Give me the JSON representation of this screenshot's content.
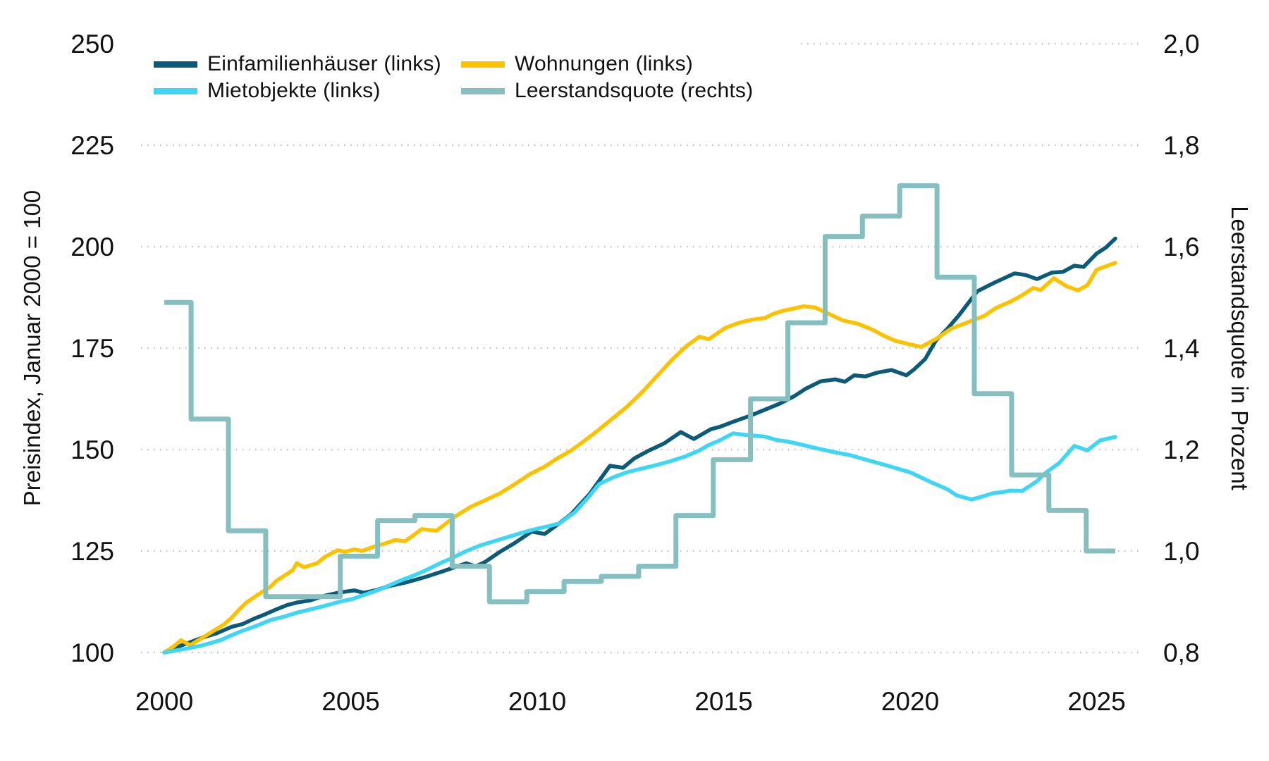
{
  "chart_data": {
    "type": "line",
    "title": "",
    "background": "#ffffff",
    "grid": {
      "show": true,
      "color": "#bdbdbd",
      "style": "dotted"
    },
    "x_axis": {
      "range": [
        2000,
        2025.6
      ],
      "tick_labels": [
        "2000",
        "2005",
        "2010",
        "2015",
        "2020",
        "2025"
      ],
      "tick_values": [
        2000,
        2005,
        2010,
        2015,
        2020,
        2025
      ]
    },
    "left_axis": {
      "label": "Preisindex, Januar 2000 = 100",
      "range": [
        100,
        250
      ],
      "tick_labels": [
        "250",
        "225",
        "200",
        "175",
        "150",
        "125",
        "100"
      ],
      "tick_values": [
        250,
        225,
        200,
        175,
        150,
        125,
        100
      ]
    },
    "right_axis": {
      "label": "Leerstandsquote in Prozent",
      "range": [
        0.8,
        2.0
      ],
      "tick_labels": [
        "2,0",
        "1,8",
        "1,6",
        "1,4",
        "1,2",
        "1,0",
        "0,8"
      ],
      "tick_values": [
        2.0,
        1.8,
        1.6,
        1.4,
        1.2,
        1.0,
        0.8
      ]
    },
    "legend": {
      "position": "top-left",
      "columns": 2
    },
    "series": [
      {
        "name": "Einfamilienhäuser (links)",
        "color": "#0b5b78",
        "axis": "left",
        "line_type": "line",
        "points": [
          [
            2000,
            100
          ],
          [
            2000.3,
            101.2
          ],
          [
            2000.6,
            102.2
          ],
          [
            2001,
            103.6
          ],
          [
            2001.4,
            104.7
          ],
          [
            2001.8,
            106.3
          ],
          [
            2002.1,
            107
          ],
          [
            2002.4,
            108.3
          ],
          [
            2002.7,
            109.4
          ],
          [
            2003,
            110.6
          ],
          [
            2003.3,
            111.7
          ],
          [
            2003.6,
            112.4
          ],
          [
            2003.9,
            112.8
          ],
          [
            2004.3,
            114
          ],
          [
            2004.7,
            114.8
          ],
          [
            2005.1,
            115.3
          ],
          [
            2005.35,
            114.7
          ],
          [
            2005.7,
            115.4
          ],
          [
            2006,
            116.3
          ],
          [
            2006.5,
            117.3
          ],
          [
            2007,
            118.6
          ],
          [
            2007.5,
            120.1
          ],
          [
            2008.1,
            122
          ],
          [
            2008.35,
            121.2
          ],
          [
            2008.6,
            122.3
          ],
          [
            2009,
            124.8
          ],
          [
            2009.4,
            127
          ],
          [
            2009.85,
            129.8
          ],
          [
            2010.2,
            129.2
          ],
          [
            2010.5,
            131.2
          ],
          [
            2010.9,
            134
          ],
          [
            2011.4,
            139
          ],
          [
            2011.95,
            146
          ],
          [
            2012.3,
            145.5
          ],
          [
            2012.6,
            147.8
          ],
          [
            2013,
            149.8
          ],
          [
            2013.4,
            151.5
          ],
          [
            2013.85,
            154.3
          ],
          [
            2014.2,
            152.6
          ],
          [
            2014.65,
            155
          ],
          [
            2014.9,
            155.6
          ],
          [
            2015.3,
            157
          ],
          [
            2015.7,
            158.3
          ],
          [
            2016.1,
            159.8
          ],
          [
            2016.5,
            161.3
          ],
          [
            2016.9,
            163.2
          ],
          [
            2017.2,
            165
          ],
          [
            2017.6,
            166.8
          ],
          [
            2018,
            167.3
          ],
          [
            2018.25,
            166.7
          ],
          [
            2018.5,
            168.3
          ],
          [
            2018.8,
            168
          ],
          [
            2019.1,
            168.9
          ],
          [
            2019.5,
            169.6
          ],
          [
            2019.9,
            168.3
          ],
          [
            2020.1,
            169.7
          ],
          [
            2020.4,
            172.3
          ],
          [
            2020.7,
            177
          ],
          [
            2021,
            179.8
          ],
          [
            2021.3,
            183
          ],
          [
            2021.8,
            189
          ],
          [
            2022.3,
            191.3
          ],
          [
            2022.8,
            193.4
          ],
          [
            2023.1,
            193
          ],
          [
            2023.4,
            192
          ],
          [
            2023.8,
            193.6
          ],
          [
            2024.1,
            193.8
          ],
          [
            2024.4,
            195.3
          ],
          [
            2024.65,
            195
          ],
          [
            2025,
            198.3
          ],
          [
            2025.25,
            199.8
          ],
          [
            2025.5,
            202
          ]
        ]
      },
      {
        "name": "Wohnungen (links)",
        "color": "#fcc200",
        "axis": "left",
        "line_type": "line",
        "points": [
          [
            2000,
            100
          ],
          [
            2000.25,
            101.5
          ],
          [
            2000.45,
            103
          ],
          [
            2000.7,
            101.8
          ],
          [
            2001,
            103.5
          ],
          [
            2001.3,
            105.2
          ],
          [
            2001.6,
            106.9
          ],
          [
            2001.8,
            108.5
          ],
          [
            2002,
            110.5
          ],
          [
            2002.2,
            112.3
          ],
          [
            2002.5,
            114.2
          ],
          [
            2002.85,
            116.2
          ],
          [
            2003,
            117.6
          ],
          [
            2003.2,
            118.8
          ],
          [
            2003.45,
            120.3
          ],
          [
            2003.55,
            122
          ],
          [
            2003.75,
            121
          ],
          [
            2004.1,
            122
          ],
          [
            2004.3,
            123.5
          ],
          [
            2004.65,
            125.2
          ],
          [
            2004.85,
            124.8
          ],
          [
            2005.1,
            125.4
          ],
          [
            2005.3,
            125
          ],
          [
            2005.6,
            126
          ],
          [
            2005.9,
            126.8
          ],
          [
            2006.2,
            127.7
          ],
          [
            2006.45,
            127.4
          ],
          [
            2006.7,
            129
          ],
          [
            2006.9,
            130.4
          ],
          [
            2007.3,
            130
          ],
          [
            2007.8,
            133.5
          ],
          [
            2008.2,
            135.8
          ],
          [
            2008.6,
            137.5
          ],
          [
            2009,
            139.2
          ],
          [
            2009.4,
            141.5
          ],
          [
            2009.8,
            143.9
          ],
          [
            2010.2,
            145.8
          ],
          [
            2010.5,
            147.6
          ],
          [
            2010.9,
            149.7
          ],
          [
            2011.2,
            151.7
          ],
          [
            2011.6,
            154.5
          ],
          [
            2012,
            157.5
          ],
          [
            2012.4,
            160.5
          ],
          [
            2012.8,
            164
          ],
          [
            2013.2,
            168
          ],
          [
            2013.6,
            172
          ],
          [
            2014,
            175.5
          ],
          [
            2014.35,
            177.8
          ],
          [
            2014.6,
            177.2
          ],
          [
            2015.05,
            180
          ],
          [
            2015.4,
            181.2
          ],
          [
            2015.75,
            182
          ],
          [
            2016.1,
            182.4
          ],
          [
            2016.35,
            183.5
          ],
          [
            2016.6,
            184.2
          ],
          [
            2016.9,
            184.8
          ],
          [
            2017.15,
            185.3
          ],
          [
            2017.45,
            185
          ],
          [
            2017.8,
            183.5
          ],
          [
            2018.2,
            181.8
          ],
          [
            2018.6,
            181
          ],
          [
            2019,
            179.5
          ],
          [
            2019.3,
            178
          ],
          [
            2019.6,
            176.8
          ],
          [
            2020,
            175.9
          ],
          [
            2020.3,
            175.3
          ],
          [
            2020.7,
            177.3
          ],
          [
            2021.1,
            179.8
          ],
          [
            2021.5,
            181.2
          ],
          [
            2022,
            183
          ],
          [
            2022.3,
            184.9
          ],
          [
            2022.7,
            186.5
          ],
          [
            2023,
            188
          ],
          [
            2023.3,
            189.8
          ],
          [
            2023.5,
            189.3
          ],
          [
            2023.85,
            192.2
          ],
          [
            2024.2,
            190.2
          ],
          [
            2024.5,
            189.2
          ],
          [
            2024.75,
            190.5
          ],
          [
            2025,
            194.3
          ],
          [
            2025.5,
            196
          ]
        ]
      },
      {
        "name": "Mietobjekte (links)",
        "color": "#3fd6f5",
        "axis": "left",
        "line_type": "line",
        "points": [
          [
            2000,
            100
          ],
          [
            2000.5,
            100.8
          ],
          [
            2001,
            101.7
          ],
          [
            2001.5,
            103
          ],
          [
            2002,
            105
          ],
          [
            2002.45,
            106.5
          ],
          [
            2002.85,
            108
          ],
          [
            2003.2,
            108.8
          ],
          [
            2003.55,
            109.8
          ],
          [
            2004,
            110.8
          ],
          [
            2004.3,
            111.5
          ],
          [
            2004.7,
            112.5
          ],
          [
            2005.05,
            113.2
          ],
          [
            2005.4,
            114.3
          ],
          [
            2005.8,
            115.6
          ],
          [
            2006.3,
            117.6
          ],
          [
            2006.7,
            119
          ],
          [
            2007,
            120.2
          ],
          [
            2007.4,
            122
          ],
          [
            2007.7,
            123.2
          ],
          [
            2008.1,
            125
          ],
          [
            2008.45,
            126.3
          ],
          [
            2008.8,
            127.3
          ],
          [
            2009.2,
            128.4
          ],
          [
            2009.55,
            129.4
          ],
          [
            2009.9,
            130.3
          ],
          [
            2010.25,
            131
          ],
          [
            2010.6,
            131.8
          ],
          [
            2011,
            134.5
          ],
          [
            2011.35,
            138
          ],
          [
            2011.66,
            141.5
          ],
          [
            2012.05,
            143.2
          ],
          [
            2012.4,
            144.4
          ],
          [
            2012.8,
            145.3
          ],
          [
            2013.2,
            146.2
          ],
          [
            2013.6,
            147.2
          ],
          [
            2014,
            148.4
          ],
          [
            2014.35,
            149.8
          ],
          [
            2014.55,
            150.9
          ],
          [
            2014.9,
            152.3
          ],
          [
            2015.25,
            154
          ],
          [
            2015.6,
            153.6
          ],
          [
            2016.1,
            153.2
          ],
          [
            2016.45,
            152.3
          ],
          [
            2016.7,
            152
          ],
          [
            2017,
            151.4
          ],
          [
            2017.5,
            150.3
          ],
          [
            2018,
            149.3
          ],
          [
            2018.4,
            148.6
          ],
          [
            2018.9,
            147.3
          ],
          [
            2019.4,
            146
          ],
          [
            2020,
            144.4
          ],
          [
            2020.6,
            141.8
          ],
          [
            2021,
            140.2
          ],
          [
            2021.25,
            138.7
          ],
          [
            2021.65,
            137.7
          ],
          [
            2022,
            138.6
          ],
          [
            2022.2,
            139.2
          ],
          [
            2022.45,
            139.5
          ],
          [
            2022.7,
            139.9
          ],
          [
            2023,
            139.8
          ],
          [
            2023.4,
            142.2
          ],
          [
            2023.65,
            144.4
          ],
          [
            2024,
            146.7
          ],
          [
            2024.4,
            150.9
          ],
          [
            2024.75,
            149.8
          ],
          [
            2025.1,
            152.3
          ],
          [
            2025.5,
            153.1
          ]
        ]
      },
      {
        "name": "Leerstandsquote (rechts)",
        "color": "#86bfc0",
        "axis": "right",
        "line_type": "step",
        "step_years": [
          2000,
          2001,
          2002,
          2003,
          2004,
          2005,
          2006,
          2007,
          2008,
          2009,
          2010,
          2011,
          2012,
          2013,
          2014,
          2015,
          2016,
          2017,
          2018,
          2019,
          2020,
          2021,
          2022,
          2023,
          2024,
          2025
        ],
        "step_values": [
          1.49,
          1.26,
          1.04,
          0.91,
          0.91,
          0.99,
          1.06,
          1.07,
          0.97,
          0.9,
          0.92,
          0.94,
          0.95,
          0.97,
          1.07,
          1.18,
          1.3,
          1.45,
          1.62,
          1.66,
          1.72,
          1.54,
          1.31,
          1.15,
          1.08,
          1.0
        ],
        "x_end": 2025.5
      }
    ]
  }
}
